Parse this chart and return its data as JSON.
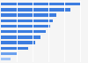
{
  "values": [
    100,
    88,
    70,
    66,
    62,
    57,
    50,
    43,
    35,
    21,
    12
  ],
  "bar_colors": [
    "#3c7de0",
    "#3c7de0",
    "#3c7de0",
    "#3c7de0",
    "#3c7de0",
    "#3c7de0",
    "#3c7de0",
    "#3c7de0",
    "#3c7de0",
    "#6aa0ee",
    "#a0c4f8"
  ],
  "background_color": "#f5f5f5",
  "plot_bg_color": "#f5f5f5",
  "xlim": [
    0,
    108
  ],
  "grid_color": "#ffffff",
  "bar_height": 0.55
}
